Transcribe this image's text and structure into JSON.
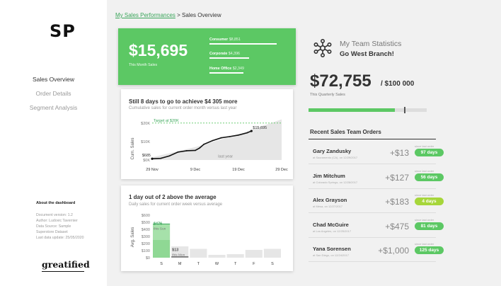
{
  "sidebar": {
    "logo": "SP",
    "nav": [
      {
        "label": "Sales Overview",
        "active": true
      },
      {
        "label": "Order Details",
        "active": false
      },
      {
        "label": "Segment Analysis",
        "active": false
      }
    ],
    "about": {
      "title": "About the dashboard",
      "lines": [
        "Document version: 1.2",
        "Author: Ludovic Tavernier",
        "Data Source: Sample",
        "Superstore Dataset",
        "Last data update: 25/05/2020"
      ]
    },
    "brand": "greatified"
  },
  "breadcrumb": {
    "link": "My Sales Performances",
    "separator": " > ",
    "current": "Sales Overview"
  },
  "month_card": {
    "amount": "$15,695",
    "label": "This Month Sales",
    "segments": [
      {
        "name": "Consumer",
        "value": "$8,851",
        "share": 0.93
      },
      {
        "name": "Corporate",
        "value": "$4,396",
        "share": 0.55
      },
      {
        "name": "Home Office",
        "value": "$2,349",
        "share": 0.47
      }
    ]
  },
  "cumulative_card": {
    "title": "Still 8 days to go to achieve $4 305 more",
    "subtitle": "Cumulative sales for current order month versus last year",
    "chart_data": {
      "type": "line",
      "ylabel": "Cum. Sales",
      "yticks": [
        "$0K",
        "$10K",
        "$20K"
      ],
      "ylim": [
        0,
        23000
      ],
      "xticks": [
        "29 Nov",
        "9 Dec",
        "19 Dec",
        "29 Dec"
      ],
      "xdomain": [
        0,
        30
      ],
      "target": {
        "label": "Target at $20K",
        "value": 20000
      },
      "last_year_label": "last year",
      "series": [
        {
          "name": "current",
          "x": [
            0,
            2,
            4,
            6,
            8,
            10,
            11,
            12,
            14,
            16,
            18,
            20,
            22,
            23
          ],
          "y": [
            685,
            900,
            2200,
            4300,
            5000,
            5200,
            6500,
            8500,
            10500,
            12000,
            12700,
            13500,
            14700,
            15695
          ],
          "labels": [
            {
              "x": 0,
              "text": "$685"
            },
            {
              "x": 23,
              "text": "$15,695"
            }
          ]
        },
        {
          "name": "last year",
          "x": [
            0,
            5,
            10,
            15,
            20,
            25,
            30
          ],
          "y": [
            1500,
            4200,
            7000,
            10500,
            13800,
            18000,
            22000
          ]
        }
      ]
    }
  },
  "daily_card": {
    "title": "1 day out of 2 above the average",
    "subtitle": "Daily sales for current order week versus average",
    "chart_data": {
      "type": "bar",
      "ylabel": "Avg. Sales",
      "yticks": [
        "$0",
        "$100",
        "$200",
        "$300",
        "$400",
        "$500",
        "$600"
      ],
      "ylim": [
        0,
        600
      ],
      "categories": [
        "S",
        "M",
        "T",
        "W",
        "T",
        "F",
        "S"
      ],
      "series": [
        {
          "name": "this week",
          "values": [
            476,
            13,
            null,
            null,
            null,
            null,
            null
          ]
        },
        {
          "name": "average",
          "values": [
            250,
            160,
            125,
            40,
            50,
            110,
            125
          ]
        }
      ],
      "annotations": [
        {
          "category_index": 0,
          "value": "$476",
          "text": "this Sun"
        },
        {
          "category_index": 1,
          "value": "$13",
          "text": "this Mon"
        }
      ]
    }
  },
  "team": {
    "title": "My Team Statistics",
    "branch": "Go West Branch!",
    "quarter_amount": "$72,755",
    "quarter_target": "/ $100 000",
    "quarter_label": "This Quarterly Sales",
    "progress": 0.73,
    "orders_title": "Recent Sales Team Orders",
    "orders": [
      {
        "name": "Gary Zandusky",
        "location": "at Sacramento (CA), on 12/29/2017",
        "amount": "+$13",
        "small_label": "since last order",
        "days": "97 days",
        "color": "#5cc864"
      },
      {
        "name": "Jim Mitchum",
        "location": "at Colorado Springs, on 12/28/2017",
        "amount": "+$127",
        "small_label": "since last order",
        "days": "56 days",
        "color": "#5cc864"
      },
      {
        "name": "Alex Grayson",
        "location": "at Mesa, on 12/27/2017",
        "amount": "+$183",
        "small_label": "since last order",
        "days": "4 days",
        "color": "#a6d63a"
      },
      {
        "name": "Chad McGuire",
        "location": "at Los Angeles, on 12/25/2017",
        "amount": "+$475",
        "small_label": "since last order",
        "days": "81 days",
        "color": "#5cc864"
      },
      {
        "name": "Yana Sorensen",
        "location": "at San Diego, on 12/24/2017",
        "amount": "+$1,000",
        "small_label": "since last order",
        "days": "125 days",
        "color": "#5cc864"
      }
    ]
  }
}
